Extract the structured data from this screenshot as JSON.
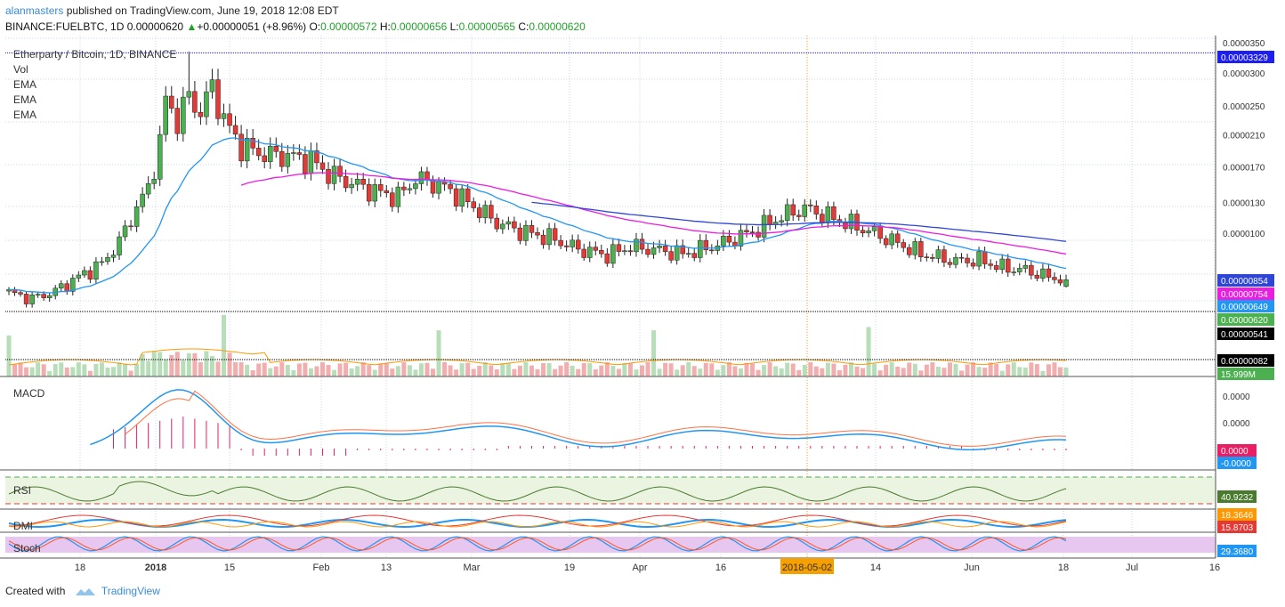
{
  "header": {
    "author": "alanmasters",
    "published_text": "published on TradingView.com, June 19, 2018 12:08 EDT"
  },
  "quote": {
    "symbol": "BINANCE:FUELBTC, 1D",
    "last": "0.00000620",
    "arrow": "▲",
    "change": "+0.00000051 (+8.96%)",
    "o_label": "O:",
    "o": "0.00000572",
    "h_label": "H:",
    "h": "0.00000656",
    "l_label": "L:",
    "l": "0.00000565",
    "c_label": "C:",
    "c": "0.00000620"
  },
  "legend": {
    "title": "Etherparty / Bitcoin, 1D, BINANCE",
    "items": [
      "Vol",
      "EMA",
      "EMA",
      "EMA"
    ]
  },
  "panes": {
    "macd": "MACD",
    "rsi": "RSI",
    "dmi": "DMI",
    "stoch": "Stoch"
  },
  "footer": {
    "created_with": "Created with",
    "brand": "TradingView"
  },
  "colors": {
    "up": "#4caf50",
    "down": "#e53935",
    "ema_fast": "#2196f3",
    "ema_mid": "#e91ee0",
    "ema_slow": "#2f45d6",
    "grid": "#c5d7ee",
    "highlight": "#f59f00"
  },
  "chart_data": {
    "type": "candlestick",
    "price_axis_ticks": [
      "0.0000350",
      "0.0000300",
      "0.0000250",
      "0.0000210",
      "0.0000170",
      "0.0000130",
      "0.0000100"
    ],
    "price_badges": [
      {
        "label": "0.00003329",
        "value": 3.329e-05,
        "color": "#1c1ff0"
      },
      {
        "label": "0.00000854",
        "value": 8.54e-06,
        "color": "#2f45d6"
      },
      {
        "label": "0.00000754",
        "value": 7.54e-06,
        "color": "#e91ee0"
      },
      {
        "label": "0.00000649",
        "value": 6.49e-06,
        "color": "#2196f3"
      },
      {
        "label": "0.00000620",
        "value": 6.2e-06,
        "color": "#4caf50"
      },
      {
        "label": "0.00000541",
        "value": 5.41e-06,
        "color": "#000000"
      },
      {
        "label": "0.00000082",
        "value": 8.2e-07,
        "color": "#000000"
      },
      {
        "label": "15.999M",
        "value": null,
        "color": "#4caf50"
      }
    ],
    "x_axis_labels": [
      "18",
      "2018",
      "15",
      "Feb",
      "13",
      "Mar",
      "19",
      "Apr",
      "16",
      "2018-05-02",
      "14",
      "Jun",
      "18",
      "Jul",
      "16"
    ],
    "highlighted_date": "2018-05-02",
    "indicator_badges": {
      "macd": [
        {
          "label": "0.0000",
          "color": "#e91e63"
        },
        {
          "label": "-0.0000",
          "color": "#2196f3"
        }
      ],
      "macd_axis": [
        "0.0000",
        "0.0000"
      ],
      "rsi": [
        {
          "label": "40.9232",
          "color": "#4a7a2e"
        }
      ],
      "dmi": [
        {
          "label": "18.3646",
          "color": "#ff9800"
        },
        {
          "label": "15.8703",
          "color": "#e53935"
        }
      ],
      "stoch": [
        {
          "label": "29.3680",
          "color": "#2196f3"
        }
      ]
    },
    "series_summary": {
      "start_date": "2017-12-10",
      "end_date": "2018-06-19",
      "peak_high": 3.35e-05,
      "last_close": 6.2e-06,
      "last_open": 5.72e-06,
      "last_high": 6.56e-06,
      "last_low": 5.65e-06
    }
  }
}
